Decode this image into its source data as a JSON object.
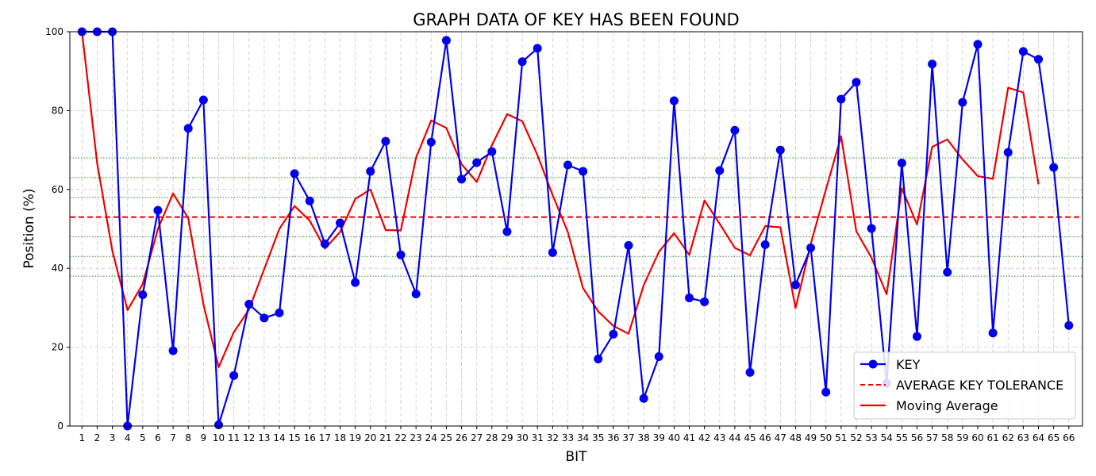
{
  "chart_data": {
    "type": "line",
    "title": "GRAPH DATA OF KEY HAS BEEN FOUND",
    "xlabel": "BIT",
    "ylabel": "Position (%)",
    "xlim": [
      0.2,
      66.9
    ],
    "ylim": [
      0,
      100
    ],
    "xticks": [
      1,
      2,
      3,
      4,
      5,
      6,
      7,
      8,
      9,
      10,
      11,
      12,
      13,
      14,
      15,
      16,
      17,
      18,
      19,
      20,
      21,
      22,
      23,
      24,
      25,
      26,
      27,
      28,
      29,
      30,
      31,
      32,
      33,
      34,
      35,
      36,
      37,
      38,
      39,
      40,
      41,
      42,
      43,
      44,
      45,
      46,
      47,
      48,
      49,
      50,
      51,
      52,
      53,
      54,
      55,
      56,
      57,
      58,
      59,
      60,
      61,
      62,
      63,
      64,
      65,
      66
    ],
    "yticks": [
      0,
      20,
      40,
      60,
      80,
      100
    ],
    "grid": true,
    "legend_position": "lower-right",
    "series": [
      {
        "name": "KEY",
        "style": "line-with-markers",
        "color": "#0000ee",
        "x": [
          1,
          2,
          3,
          4,
          5,
          6,
          7,
          8,
          9,
          10,
          11,
          12,
          13,
          14,
          15,
          16,
          17,
          18,
          19,
          20,
          21,
          22,
          23,
          24,
          25,
          26,
          27,
          28,
          29,
          30,
          31,
          32,
          33,
          34,
          35,
          36,
          37,
          38,
          39,
          40,
          41,
          42,
          43,
          44,
          45,
          46,
          47,
          48,
          49,
          50,
          51,
          52,
          53,
          54,
          55,
          56,
          57,
          58,
          59,
          60,
          61,
          62,
          63,
          64,
          65,
          66
        ],
        "values": [
          100,
          100,
          100,
          0,
          33.3,
          54.7,
          19.1,
          75.5,
          82.7,
          0.3,
          12.8,
          30.9,
          27.4,
          28.7,
          64.0,
          57.1,
          46.2,
          51.5,
          36.4,
          64.6,
          72.2,
          43.4,
          33.5,
          72.0,
          97.8,
          62.6,
          66.8,
          69.6,
          49.3,
          92.4,
          95.8,
          44.0,
          66.2,
          64.6,
          17.0,
          23.3,
          45.8,
          7.0,
          17.6,
          82.5,
          32.5,
          31.5,
          64.8,
          75.0,
          13.6,
          46.0,
          70.0,
          35.8,
          45.2,
          8.6,
          82.9,
          87.2,
          50.1,
          10.8,
          66.7,
          22.7,
          91.8,
          39.0,
          82.1,
          96.8,
          23.6,
          69.4,
          95.0,
          93.0,
          65.6,
          25.5
        ]
      },
      {
        "name": "AVERAGE KEY TOLERANCE",
        "style": "dashed",
        "color": "#ee0000",
        "values": [
          53,
          53
        ]
      },
      {
        "name": "Moving Average",
        "style": "line",
        "color": "#ee0000",
        "x": [
          1,
          2,
          3,
          4,
          5,
          6,
          7,
          8,
          9,
          10,
          11,
          12,
          13,
          14,
          15,
          16,
          17,
          18,
          19,
          20,
          21,
          22,
          23,
          24,
          25,
          26,
          27,
          28,
          29,
          30,
          31,
          32,
          33,
          34,
          35,
          36,
          37,
          38,
          39,
          40,
          41,
          42,
          43,
          44,
          45,
          46,
          47,
          48,
          49,
          50,
          51,
          52,
          53,
          54,
          55,
          56,
          57,
          58,
          59,
          60,
          61,
          62,
          63,
          64
        ],
        "values": [
          100,
          66.7,
          44.4,
          29.4,
          36.0,
          50.0,
          59.0,
          52.7,
          30.9,
          14.9,
          23.8,
          29.5,
          39.8,
          50.0,
          55.8,
          52.1,
          45.0,
          49.2,
          57.6,
          60.0,
          49.7,
          49.6,
          68.0,
          77.5,
          75.6,
          66.4,
          61.9,
          71.2,
          79.1,
          77.3,
          68.7,
          58.6,
          49.2,
          35.0,
          29.1,
          25.4,
          23.4,
          35.7,
          44.2,
          48.9,
          43.4,
          57.2,
          51.3,
          45.2,
          43.3,
          50.7,
          50.4,
          29.9,
          46.2,
          60.0,
          73.5,
          49.4,
          42.7,
          33.4,
          60.3,
          51.1,
          70.8,
          72.7,
          67.6,
          63.4,
          62.7,
          85.8,
          84.6,
          61.3
        ]
      }
    ],
    "reference_lines": {
      "color": "#2e8b2e",
      "style": "dotted",
      "values": [
        38,
        43,
        48,
        58,
        63,
        68
      ]
    }
  }
}
